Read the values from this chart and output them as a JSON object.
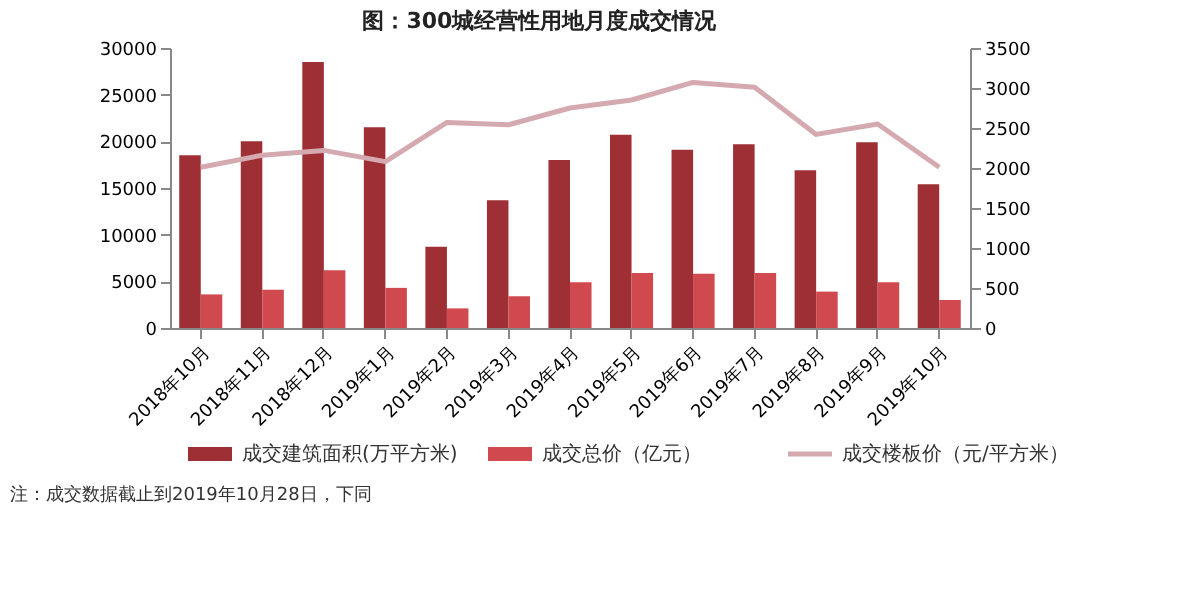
{
  "chart_data": {
    "type": "bar",
    "title": "图：300城经营性用地月度成交情况",
    "categories": [
      "2018年10月",
      "2018年11月",
      "2018年12月",
      "2019年1月",
      "2019年2月",
      "2019年3月",
      "2019年4月",
      "2019年5月",
      "2019年6月",
      "2019年7月",
      "2019年8月",
      "2019年9月",
      "2019年10月"
    ],
    "series": [
      {
        "name": "成交建筑面积(万平方米)",
        "color": "#9e2f35",
        "values": [
          18500,
          20000,
          28500,
          21500,
          8700,
          13700,
          18000,
          20700,
          19100,
          19700,
          16900,
          19900,
          15400
        ]
      },
      {
        "name": "成交总价（亿元）",
        "color": "#d0494f",
        "values": [
          3600,
          4100,
          6200,
          4300,
          2100,
          3400,
          4900,
          5900,
          5800,
          5900,
          3900,
          4900,
          3000
        ]
      },
      {
        "name": "成交楼板价（元/平方米）",
        "type": "line",
        "axis": "y2",
        "color": "#d4aab0",
        "values": [
          2010,
          2160,
          2220,
          2080,
          2570,
          2540,
          2750,
          2850,
          3070,
          3010,
          2420,
          2550,
          2010
        ]
      }
    ],
    "ylim": [
      0,
      30000
    ],
    "yticks": [
      0,
      5000,
      10000,
      15000,
      20000,
      25000,
      30000
    ],
    "y2lim": [
      0,
      3500
    ],
    "y2ticks": [
      0,
      500,
      1000,
      1500,
      2000,
      2500,
      3000,
      3500
    ],
    "grid": false,
    "legend": "bottom",
    "marker": "none",
    "line_style": "solid",
    "annotations": [
      "注：成交数据截止到2019年10月28日，下同"
    ]
  }
}
